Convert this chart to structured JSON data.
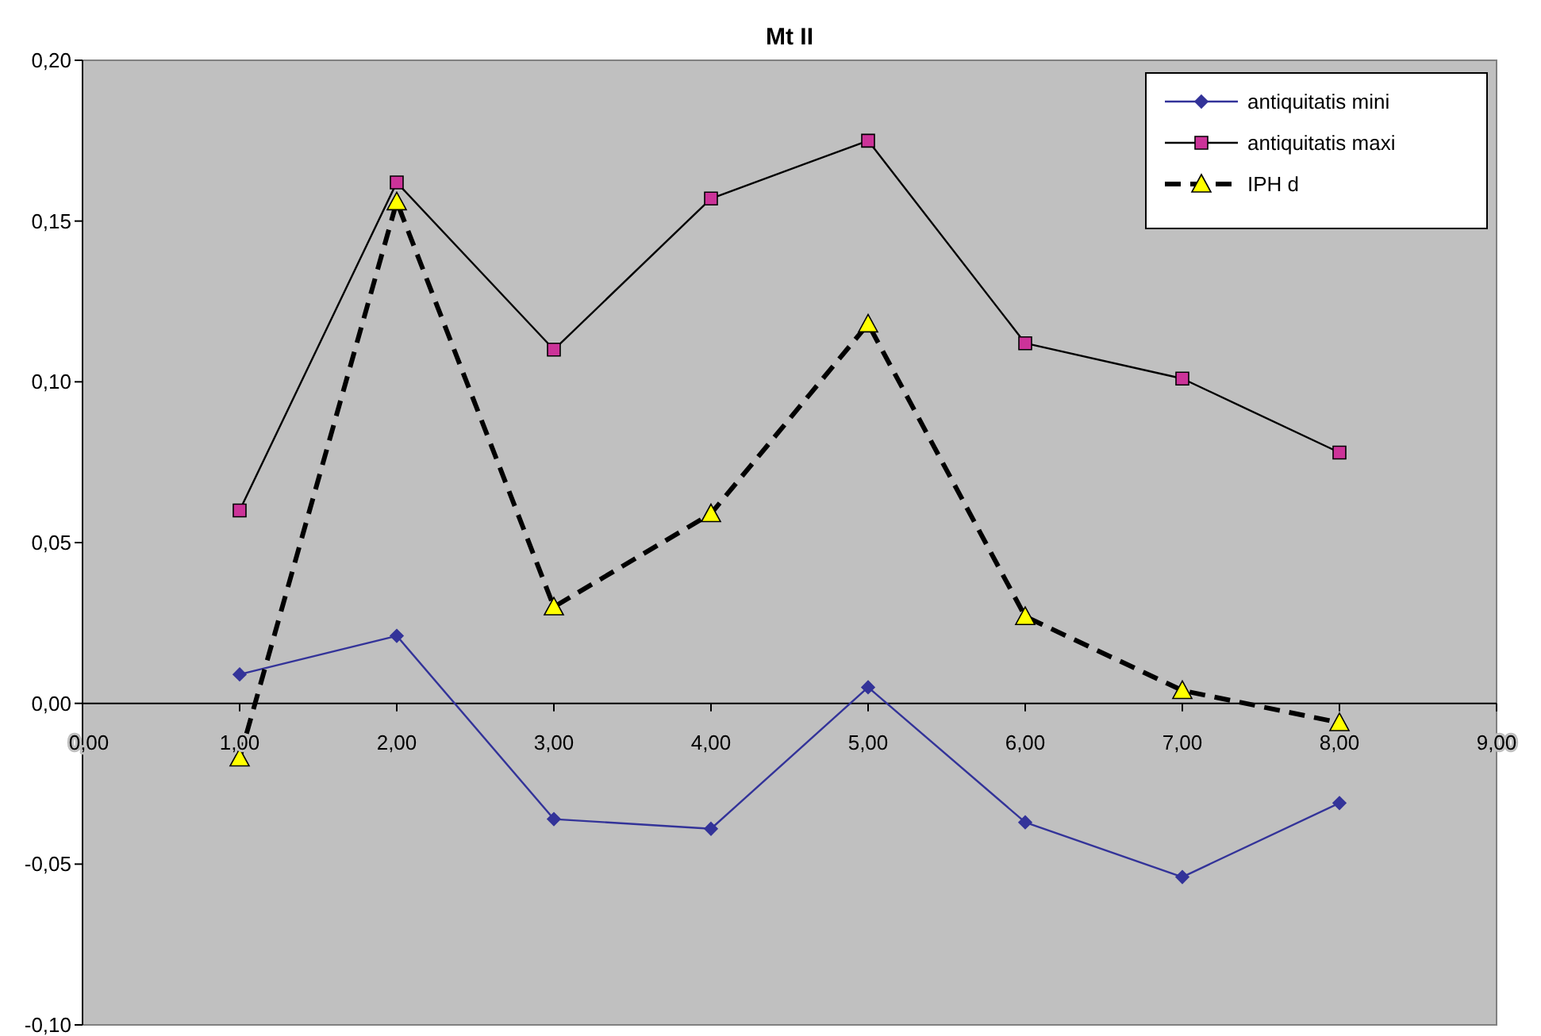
{
  "chart_data": {
    "type": "line",
    "title": "Mt II",
    "x": [
      1,
      2,
      3,
      4,
      5,
      6,
      7,
      8
    ],
    "xlim": [
      0,
      9
    ],
    "xticks": [
      {
        "value": 0,
        "label": "0,00"
      },
      {
        "value": 1,
        "label": "1,00"
      },
      {
        "value": 2,
        "label": "2,00"
      },
      {
        "value": 3,
        "label": "3,00"
      },
      {
        "value": 4,
        "label": "4,00"
      },
      {
        "value": 5,
        "label": "5,00"
      },
      {
        "value": 6,
        "label": "6,00"
      },
      {
        "value": 7,
        "label": "7,00"
      },
      {
        "value": 8,
        "label": "8,00"
      },
      {
        "value": 9,
        "label": "9,00"
      }
    ],
    "ylim": [
      -0.1,
      0.2
    ],
    "yticks": [
      {
        "value": -0.1,
        "label": "-0,10"
      },
      {
        "value": -0.05,
        "label": "-0,05"
      },
      {
        "value": 0,
        "label": "0,00"
      },
      {
        "value": 0.05,
        "label": "0,05"
      },
      {
        "value": 0.1,
        "label": "0,10"
      },
      {
        "value": 0.15,
        "label": "0,15"
      },
      {
        "value": 0.2,
        "label": "0,20"
      }
    ],
    "grid": false,
    "legend": "top right",
    "series": [
      {
        "name": "antiquitatis mini",
        "color": "#333399",
        "marker": "diamond",
        "line_style": "solid",
        "values": [
          0.009,
          0.021,
          -0.036,
          -0.039,
          0.005,
          -0.037,
          -0.054,
          -0.031
        ]
      },
      {
        "name": "antiquitatis maxi",
        "color": "#000000",
        "colors": [
          "#cc3399",
          "#cc3399",
          "#cc3399",
          "#cc3399",
          "#cc3399",
          "#cc3399",
          "#cc3399",
          "#cc3399"
        ],
        "marker": "square",
        "line_style": "solid",
        "values": [
          0.06,
          0.162,
          0.11,
          0.157,
          0.175,
          0.112,
          0.101,
          0.078
        ]
      },
      {
        "name": "IPH d",
        "color": "#000000",
        "colors": [
          "#ffff00",
          "#ffff00",
          "#ffff00",
          "#ffff00",
          "#ffff00",
          "#ffff00",
          "#ffff00",
          "#ffff00"
        ],
        "marker": "triangle",
        "line_style": "dashed",
        "values": [
          -0.017,
          0.156,
          0.03,
          0.059,
          0.118,
          0.027,
          0.004,
          -0.006
        ]
      }
    ]
  }
}
